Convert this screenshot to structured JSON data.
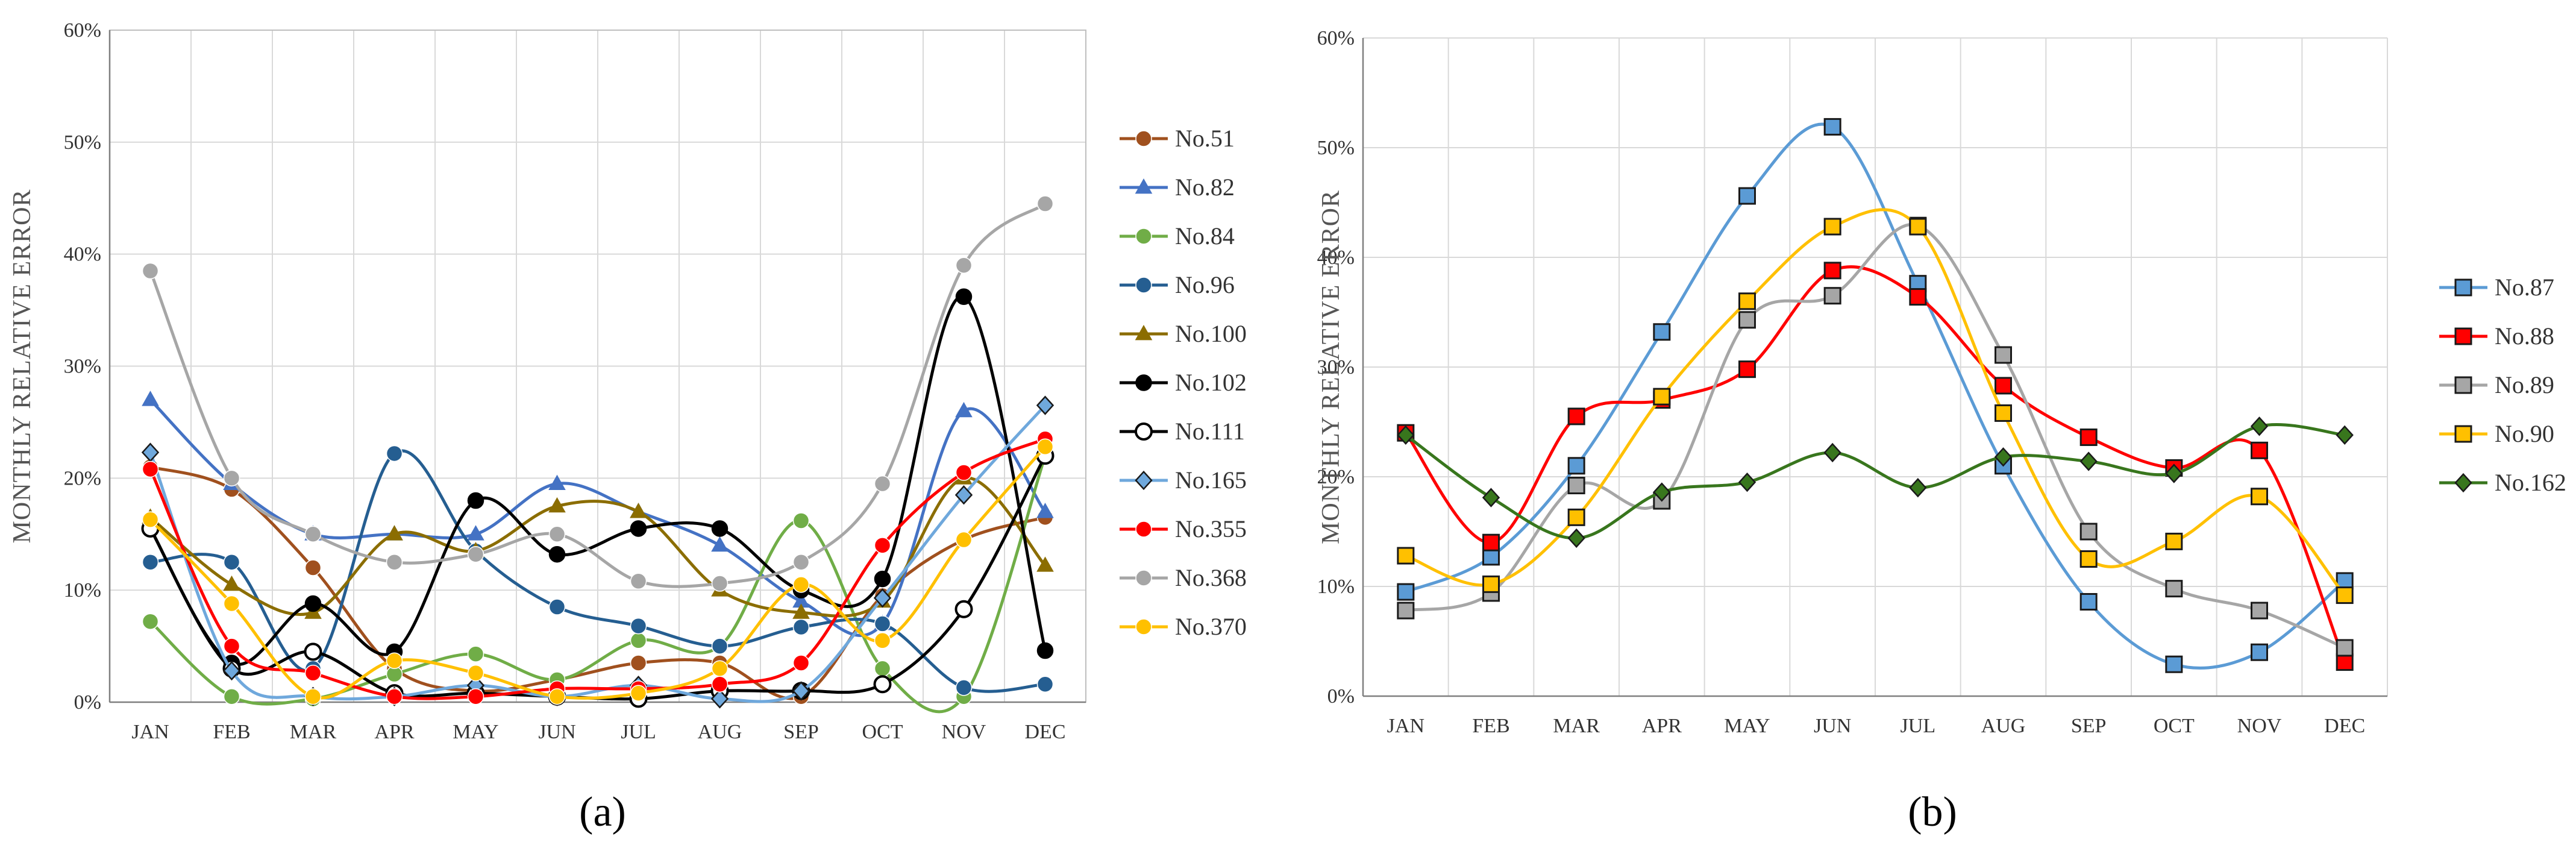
{
  "chart_data": [
    {
      "type": "line",
      "panel_label": "(a)",
      "ylabel": "MONTHLY RELATIVE ERROR",
      "categories": [
        "JAN",
        "FEB",
        "MAR",
        "APR",
        "MAY",
        "JUN",
        "JUL",
        "AUG",
        "SEP",
        "OCT",
        "NOV",
        "DEC"
      ],
      "ylim": [
        0,
        60
      ],
      "yticks": [
        "0%",
        "10%",
        "20%",
        "30%",
        "40%",
        "50%",
        "60%"
      ],
      "grid": true,
      "legend_position": "right",
      "series": [
        {
          "name": "No.51",
          "color": "#A0501E",
          "marker": "circle",
          "values": [
            21.0,
            19.0,
            12.0,
            3.0,
            1.0,
            2.0,
            3.5,
            3.5,
            0.5,
            9.5,
            14.5,
            16.5
          ]
        },
        {
          "name": "No.82",
          "color": "#4472C4",
          "marker": "triangle",
          "values": [
            27.0,
            19.5,
            15.0,
            15.0,
            15.0,
            19.5,
            17.0,
            14.0,
            9.0,
            7.0,
            26.0,
            17.0
          ]
        },
        {
          "name": "No.84",
          "color": "#70AD47",
          "marker": "circle",
          "values": [
            7.2,
            0.5,
            0.3,
            2.5,
            4.3,
            2.0,
            5.5,
            5.0,
            16.2,
            3.0,
            0.5,
            22.0
          ]
        },
        {
          "name": "No.96",
          "color": "#255E91",
          "marker": "circle",
          "values": [
            12.5,
            12.5,
            3.0,
            22.2,
            13.5,
            8.5,
            6.8,
            5.0,
            6.7,
            7.0,
            1.3,
            1.6
          ]
        },
        {
          "name": "No.100",
          "color": "#8B6D00",
          "marker": "triangle",
          "values": [
            16.5,
            10.5,
            8.0,
            15.0,
            13.5,
            17.5,
            17.0,
            10.0,
            8.0,
            9.0,
            20.0,
            12.2
          ]
        },
        {
          "name": "No.102",
          "color": "#000000",
          "marker": "circle",
          "values": [
            15.5,
            3.5,
            8.8,
            4.5,
            18.0,
            13.2,
            15.5,
            15.5,
            10.0,
            11.0,
            36.2,
            4.6
          ]
        },
        {
          "name": "No.111",
          "color": "#000000",
          "marker": "hollow-circle",
          "values": [
            15.5,
            3.0,
            4.5,
            0.8,
            0.8,
            0.5,
            0.3,
            1.0,
            1.0,
            1.6,
            8.3,
            22.0
          ]
        },
        {
          "name": "No.165",
          "color": "#6FA8DC",
          "marker": "diamond",
          "values": [
            22.3,
            2.8,
            0.5,
            0.5,
            1.5,
            0.5,
            1.5,
            0.3,
            1.0,
            9.3,
            18.5,
            26.5
          ]
        },
        {
          "name": "No.355",
          "color": "#FF0000",
          "marker": "circle",
          "values": [
            20.8,
            5.0,
            2.6,
            0.5,
            0.5,
            1.2,
            1.2,
            1.6,
            3.5,
            14.0,
            20.5,
            23.5
          ]
        },
        {
          "name": "No.368",
          "color": "#A6A6A6",
          "marker": "circle",
          "values": [
            38.5,
            20.0,
            15.0,
            12.5,
            13.2,
            15.0,
            10.8,
            10.6,
            12.5,
            19.5,
            39.0,
            44.5
          ]
        },
        {
          "name": "No.370",
          "color": "#FFC000",
          "marker": "circle",
          "values": [
            16.3,
            8.8,
            0.5,
            3.7,
            2.6,
            0.5,
            0.8,
            3.0,
            10.5,
            5.5,
            14.5,
            22.8
          ]
        }
      ]
    },
    {
      "type": "line",
      "panel_label": "(b)",
      "ylabel": "MONTHLY RELATIVE ERROR",
      "categories": [
        "JAN",
        "FEB",
        "MAR",
        "APR",
        "MAY",
        "JUN",
        "JUL",
        "AUG",
        "SEP",
        "OCT",
        "NOV",
        "DEC"
      ],
      "ylim": [
        0,
        60
      ],
      "yticks": [
        "0%",
        "10%",
        "20%",
        "30%",
        "40%",
        "50%",
        "60%"
      ],
      "grid": true,
      "legend_position": "right",
      "series": [
        {
          "name": "No.87",
          "color": "#5B9BD5",
          "marker": "square",
          "values": [
            9.5,
            12.7,
            21.0,
            33.2,
            45.6,
            51.9,
            37.6,
            21.0,
            8.6,
            2.9,
            4.0,
            10.5
          ]
        },
        {
          "name": "No.88",
          "color": "#FF0000",
          "marker": "square",
          "values": [
            24.0,
            14.0,
            25.5,
            27.0,
            29.8,
            38.8,
            36.4,
            28.3,
            23.6,
            20.8,
            22.4,
            3.1
          ]
        },
        {
          "name": "No.89",
          "color": "#A6A6A6",
          "marker": "square",
          "values": [
            7.8,
            9.4,
            19.2,
            17.8,
            34.3,
            36.5,
            42.9,
            31.1,
            15.0,
            9.8,
            7.8,
            4.4
          ]
        },
        {
          "name": "No.90",
          "color": "#FFC000",
          "marker": "square",
          "values": [
            12.8,
            10.2,
            16.3,
            27.3,
            36.0,
            42.8,
            42.8,
            25.8,
            12.5,
            14.1,
            18.2,
            9.2
          ]
        },
        {
          "name": "No.162",
          "color": "#38761D",
          "marker": "diamond",
          "values": [
            23.8,
            18.1,
            14.4,
            18.6,
            19.5,
            22.2,
            19.0,
            21.8,
            21.4,
            20.3,
            24.6,
            23.8
          ]
        }
      ]
    }
  ]
}
